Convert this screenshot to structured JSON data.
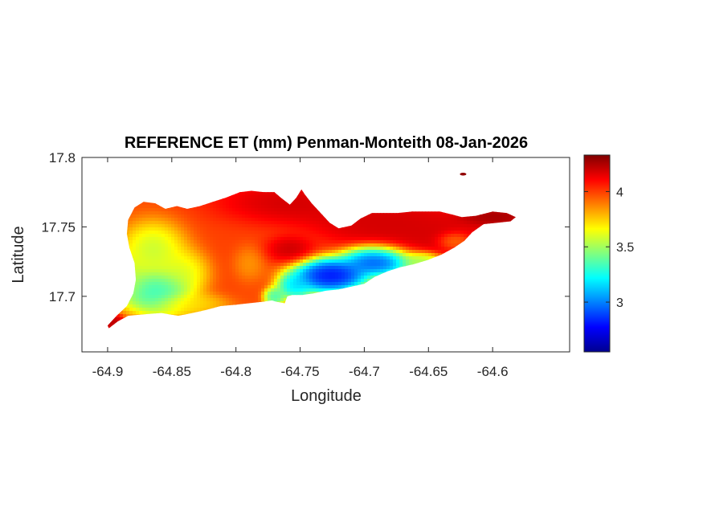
{
  "chart_data": {
    "type": "heatmap",
    "title": "REFERENCE ET (mm) Penman-Monteith 08-Jan-2026",
    "xlabel": "Longitude",
    "ylabel": "Latitude",
    "xlim": [
      -64.92,
      -64.54
    ],
    "ylim": [
      17.66,
      17.8
    ],
    "xticks": [
      -64.9,
      -64.85,
      -64.8,
      -64.75,
      -64.7,
      -64.65,
      -64.6
    ],
    "xtick_labels": [
      "-64.9",
      "-64.85",
      "-64.8",
      "-64.75",
      "-64.7",
      "-64.65",
      "-64.6"
    ],
    "yticks": [
      17.7,
      17.75,
      17.8
    ],
    "ytick_labels": [
      "17.7",
      "17.75",
      "17.8"
    ],
    "colorbar": {
      "colormap": "jet",
      "range": [
        2.55,
        4.33
      ],
      "ticks": [
        3,
        3.5,
        4
      ],
      "tick_labels": [
        "3",
        "3.5",
        "4"
      ]
    },
    "region_outline": [
      [
        -64.9,
        17.679
      ],
      [
        -64.893,
        17.686
      ],
      [
        -64.885,
        17.693
      ],
      [
        -64.88,
        17.702
      ],
      [
        -64.878,
        17.712
      ],
      [
        -64.879,
        17.724
      ],
      [
        -64.883,
        17.735
      ],
      [
        -64.885,
        17.745
      ],
      [
        -64.884,
        17.755
      ],
      [
        -64.879,
        17.764
      ],
      [
        -64.872,
        17.768
      ],
      [
        -64.863,
        17.767
      ],
      [
        -64.855,
        17.763
      ],
      [
        -64.846,
        17.765
      ],
      [
        -64.838,
        17.763
      ],
      [
        -64.828,
        17.765
      ],
      [
        -64.818,
        17.768
      ],
      [
        -64.808,
        17.771
      ],
      [
        -64.797,
        17.775
      ],
      [
        -64.788,
        17.776
      ],
      [
        -64.778,
        17.775
      ],
      [
        -64.77,
        17.775
      ],
      [
        -64.765,
        17.771
      ],
      [
        -64.758,
        17.766
      ],
      [
        -64.753,
        17.771
      ],
      [
        -64.749,
        17.777
      ],
      [
        -64.746,
        17.773
      ],
      [
        -64.741,
        17.767
      ],
      [
        -64.734,
        17.76
      ],
      [
        -64.727,
        17.753
      ],
      [
        -64.72,
        17.749
      ],
      [
        -64.71,
        17.751
      ],
      [
        -64.703,
        17.756
      ],
      [
        -64.694,
        17.76
      ],
      [
        -64.685,
        17.76
      ],
      [
        -64.674,
        17.76
      ],
      [
        -64.663,
        17.761
      ],
      [
        -64.652,
        17.761
      ],
      [
        -64.641,
        17.761
      ],
      [
        -64.632,
        17.759
      ],
      [
        -64.624,
        17.757
      ],
      [
        -64.613,
        17.758
      ],
      [
        -64.6,
        17.761
      ],
      [
        -64.589,
        17.76
      ],
      [
        -64.582,
        17.757
      ],
      [
        -64.586,
        17.754
      ],
      [
        -64.596,
        17.753
      ],
      [
        -64.607,
        17.752
      ],
      [
        -64.616,
        17.746
      ],
      [
        -64.622,
        17.74
      ],
      [
        -64.63,
        17.735
      ],
      [
        -64.64,
        17.73
      ],
      [
        -64.651,
        17.726
      ],
      [
        -64.662,
        17.723
      ],
      [
        -64.672,
        17.721
      ],
      [
        -64.682,
        17.718
      ],
      [
        -64.692,
        17.714
      ],
      [
        -64.7,
        17.709
      ],
      [
        -64.71,
        17.707
      ],
      [
        -64.72,
        17.705
      ],
      [
        -64.73,
        17.704
      ],
      [
        -64.74,
        17.702
      ],
      [
        -64.748,
        17.701
      ],
      [
        -64.756,
        17.701
      ],
      [
        -64.76,
        17.7
      ],
      [
        -64.762,
        17.695
      ],
      [
        -64.768,
        17.696
      ],
      [
        -64.772,
        17.697
      ],
      [
        -64.78,
        17.696
      ],
      [
        -64.79,
        17.695
      ],
      [
        -64.8,
        17.694
      ],
      [
        -64.812,
        17.693
      ],
      [
        -64.824,
        17.69
      ],
      [
        -64.834,
        17.688
      ],
      [
        -64.845,
        17.686
      ],
      [
        -64.858,
        17.688
      ],
      [
        -64.872,
        17.687
      ],
      [
        -64.884,
        17.686
      ],
      [
        -64.892,
        17.682
      ],
      [
        -64.899,
        17.677
      ]
    ],
    "islets": [
      {
        "lon": -64.623,
        "lat": 17.788,
        "value": 4.3
      }
    ],
    "value_field": [
      {
        "lon": -64.81,
        "lat": 17.74,
        "value": 4.0,
        "sx": 0.06,
        "sy": 0.03
      },
      {
        "lon": -64.66,
        "lat": 17.745,
        "value": 4.2,
        "sx": 0.05,
        "sy": 0.015
      },
      {
        "lon": -64.77,
        "lat": 17.765,
        "value": 4.25,
        "sx": 0.04,
        "sy": 0.012
      },
      {
        "lon": -64.7,
        "lat": 17.755,
        "value": 4.2,
        "sx": 0.04,
        "sy": 0.01
      },
      {
        "lon": -64.6,
        "lat": 17.757,
        "value": 4.3,
        "sx": 0.02,
        "sy": 0.005
      },
      {
        "lon": -64.76,
        "lat": 17.734,
        "value": 4.3,
        "sx": 0.015,
        "sy": 0.008
      },
      {
        "lon": -64.86,
        "lat": 17.735,
        "value": 3.35,
        "sx": 0.02,
        "sy": 0.015
      },
      {
        "lon": -64.86,
        "lat": 17.705,
        "value": 3.2,
        "sx": 0.02,
        "sy": 0.012
      },
      {
        "lon": -64.838,
        "lat": 17.72,
        "value": 3.45,
        "sx": 0.015,
        "sy": 0.012
      },
      {
        "lon": -64.885,
        "lat": 17.715,
        "value": 3.5,
        "sx": 0.012,
        "sy": 0.012
      },
      {
        "lon": -64.835,
        "lat": 17.695,
        "value": 3.7,
        "sx": 0.02,
        "sy": 0.006
      },
      {
        "lon": -64.79,
        "lat": 17.725,
        "value": 3.75,
        "sx": 0.01,
        "sy": 0.01
      },
      {
        "lon": -64.73,
        "lat": 17.716,
        "value": 2.6,
        "sx": 0.022,
        "sy": 0.009
      },
      {
        "lon": -64.69,
        "lat": 17.727,
        "value": 2.7,
        "sx": 0.02,
        "sy": 0.008
      },
      {
        "lon": -64.755,
        "lat": 17.708,
        "value": 3.05,
        "sx": 0.01,
        "sy": 0.007
      },
      {
        "lon": -64.77,
        "lat": 17.7,
        "value": 3.25,
        "sx": 0.006,
        "sy": 0.005
      },
      {
        "lon": -64.655,
        "lat": 17.726,
        "value": 3.4,
        "sx": 0.012,
        "sy": 0.005
      },
      {
        "lon": -64.63,
        "lat": 17.74,
        "value": 3.8,
        "sx": 0.01,
        "sy": 0.005
      },
      {
        "lon": -64.896,
        "lat": 17.681,
        "value": 4.25,
        "sx": 0.006,
        "sy": 0.004
      }
    ],
    "base_value": 3.95
  }
}
